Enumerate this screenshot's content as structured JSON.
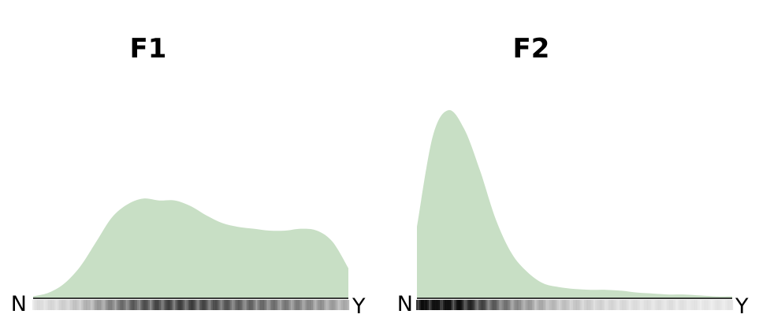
{
  "chart_data": [
    {
      "type": "area",
      "title": "F1",
      "x_start_label": "N",
      "x_end_label": "Y",
      "fill_color": "#c8dfc5",
      "axis_color": "#000000",
      "rug_color": "#000000",
      "x": [
        0.0,
        0.05,
        0.1,
        0.15,
        0.2,
        0.25,
        0.3,
        0.35,
        0.4,
        0.45,
        0.5,
        0.55,
        0.6,
        0.65,
        0.7,
        0.75,
        0.8,
        0.85,
        0.9,
        0.95,
        1.0
      ],
      "density": [
        0.01,
        0.03,
        0.08,
        0.17,
        0.3,
        0.43,
        0.5,
        0.53,
        0.52,
        0.52,
        0.49,
        0.44,
        0.4,
        0.38,
        0.37,
        0.36,
        0.36,
        0.37,
        0.36,
        0.3,
        0.16
      ],
      "ylim": [
        0,
        1
      ],
      "rug_intensity": [
        0.1,
        0.12,
        0.15,
        0.2,
        0.3,
        0.4,
        0.5,
        0.55,
        0.58,
        0.6,
        0.6,
        0.58,
        0.55,
        0.5,
        0.48,
        0.45,
        0.42,
        0.4,
        0.35,
        0.3,
        0.25
      ],
      "grid": false,
      "legend": "none"
    },
    {
      "type": "area",
      "title": "F2",
      "x_start_label": "N",
      "x_end_label": "Y",
      "fill_color": "#c8dfc5",
      "axis_color": "#000000",
      "rug_color": "#000000",
      "x": [
        0.0,
        0.05,
        0.1,
        0.15,
        0.2,
        0.25,
        0.3,
        0.35,
        0.4,
        0.45,
        0.5,
        0.55,
        0.6,
        0.65,
        0.7,
        0.75,
        0.8,
        0.85,
        0.9,
        0.95,
        1.0
      ],
      "density": [
        0.38,
        0.86,
        1.0,
        0.9,
        0.68,
        0.42,
        0.24,
        0.14,
        0.08,
        0.06,
        0.05,
        0.045,
        0.045,
        0.04,
        0.03,
        0.025,
        0.02,
        0.02,
        0.015,
        0.01,
        0.01
      ],
      "ylim": [
        0,
        1
      ],
      "rug_intensity": [
        0.85,
        0.9,
        0.85,
        0.75,
        0.6,
        0.5,
        0.4,
        0.32,
        0.25,
        0.2,
        0.18,
        0.15,
        0.13,
        0.12,
        0.1,
        0.1,
        0.1,
        0.09,
        0.08,
        0.08,
        0.08
      ],
      "grid": false,
      "legend": "none"
    }
  ]
}
